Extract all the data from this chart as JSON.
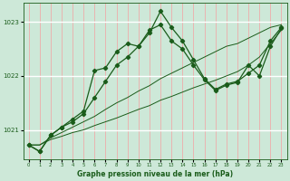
{
  "title": "Graphe pression niveau de la mer (hPa)",
  "bg_color": "#cde8d8",
  "grid_color_v": "#f5a0a0",
  "grid_color_h": "#ffffff",
  "line_color": "#1a5c1a",
  "xlim": [
    -0.5,
    23.5
  ],
  "ylim": [
    1020.45,
    1023.35
  ],
  "yticks": [
    1021,
    1022,
    1023
  ],
  "xticks": [
    0,
    1,
    2,
    3,
    4,
    5,
    6,
    7,
    8,
    9,
    10,
    11,
    12,
    13,
    14,
    15,
    16,
    17,
    18,
    19,
    20,
    21,
    22,
    23
  ],
  "lines": [
    {
      "x": [
        0,
        1,
        2,
        3,
        4,
        5,
        6,
        7,
        8,
        9,
        10,
        11,
        12,
        13,
        14,
        15,
        16,
        17,
        18,
        19,
        20,
        21,
        22,
        23
      ],
      "y": [
        1020.72,
        1020.72,
        1020.82,
        1020.88,
        1020.95,
        1021.0,
        1021.08,
        1021.15,
        1021.22,
        1021.3,
        1021.38,
        1021.45,
        1021.55,
        1021.62,
        1021.7,
        1021.78,
        1021.85,
        1021.92,
        1022.0,
        1022.08,
        1022.2,
        1022.35,
        1022.6,
        1022.85
      ],
      "marker": false,
      "lw": 0.7
    },
    {
      "x": [
        0,
        1,
        2,
        3,
        4,
        5,
        6,
        7,
        8,
        9,
        10,
        11,
        12,
        13,
        14,
        15,
        16,
        17,
        18,
        19,
        20,
        21,
        22,
        23
      ],
      "y": [
        1020.72,
        1020.72,
        1020.85,
        1020.95,
        1021.05,
        1021.15,
        1021.25,
        1021.38,
        1021.5,
        1021.6,
        1021.72,
        1021.82,
        1021.95,
        1022.05,
        1022.15,
        1022.25,
        1022.35,
        1022.45,
        1022.55,
        1022.6,
        1022.7,
        1022.8,
        1022.9,
        1022.95
      ],
      "marker": false,
      "lw": 0.7
    },
    {
      "x": [
        0,
        1,
        2,
        3,
        4,
        5,
        6,
        7,
        8,
        9,
        10,
        11,
        12,
        13,
        14,
        15,
        16,
        17,
        18,
        19,
        20,
        21,
        22,
        23
      ],
      "y": [
        1020.72,
        1020.6,
        1020.9,
        1021.05,
        1021.15,
        1021.3,
        1021.6,
        1021.9,
        1022.2,
        1022.35,
        1022.55,
        1022.8,
        1023.2,
        1022.9,
        1022.65,
        1022.3,
        1021.95,
        1021.75,
        1021.85,
        1021.9,
        1022.05,
        1022.2,
        1022.65,
        1022.9
      ],
      "marker": true,
      "lw": 0.9
    },
    {
      "x": [
        0,
        1,
        2,
        3,
        4,
        5,
        6,
        7,
        8,
        9,
        10,
        11,
        12,
        13,
        14,
        15,
        16,
        17,
        18,
        19,
        20,
        21,
        22,
        23
      ],
      "y": [
        1020.72,
        1020.6,
        1020.9,
        1021.05,
        1021.2,
        1021.35,
        1022.1,
        1022.15,
        1022.45,
        1022.6,
        1022.55,
        1022.85,
        1022.95,
        1022.65,
        1022.5,
        1022.2,
        1021.93,
        1021.73,
        1021.83,
        1021.88,
        1022.2,
        1022.0,
        1022.55,
        1022.88
      ],
      "marker": true,
      "lw": 0.9
    }
  ]
}
